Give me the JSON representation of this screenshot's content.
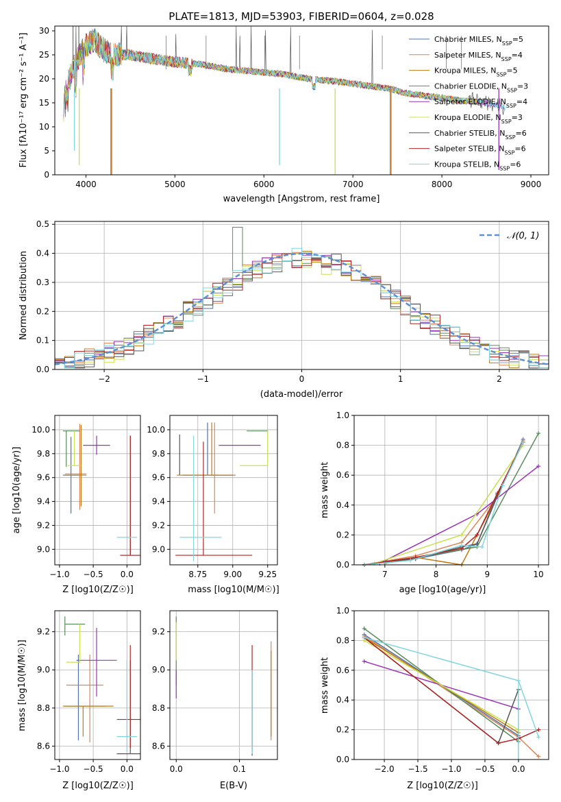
{
  "title": "PLATE=1813, MJD=53903, FIBERID=0604, z=0.028",
  "models": [
    {
      "name": "Chabrier MILES",
      "nssp": "5",
      "color": "#4c72b0"
    },
    {
      "name": "Salpeter MILES",
      "nssp": "4",
      "color": "#dd8452"
    },
    {
      "name": "Kroupa MILES",
      "nssp": "5",
      "color": "#c07a10"
    },
    {
      "name": "Chabrier ELODIE",
      "nssp": "3",
      "color": "#5a8a5a"
    },
    {
      "name": "Salpeter ELODIE",
      "nssp": "4",
      "color": "#9a32b8"
    },
    {
      "name": "Kroupa ELODIE",
      "nssp": "3",
      "color": "#c8e04a"
    },
    {
      "name": "Chabrier STELIB",
      "nssp": "6",
      "color": "#555555"
    },
    {
      "name": "Salpeter STELIB",
      "nssp": "6",
      "color": "#b22222"
    },
    {
      "name": "Kroupa STELIB",
      "nssp": "6",
      "color": "#7fd6e0"
    }
  ],
  "legend_subscript": "SSP",
  "spectrum": {
    "ylabel": "Flux [fλ10⁻¹⁷ erg cm⁻² s⁻¹ A⁻¹]",
    "xlabel": "wavelength [Angstrom, rest frame]",
    "xticks": [
      "4000",
      "5000",
      "6000",
      "7000",
      "8000",
      "9000"
    ],
    "yticks": [
      "0",
      "5",
      "10",
      "15",
      "20",
      "25",
      "30"
    ]
  },
  "histogram": {
    "ylabel": "Normed distribution",
    "xlabel": "(data-model)/error",
    "xticks": [
      "−2",
      "−1",
      "0",
      "1",
      "2"
    ],
    "yticks": [
      "0.0",
      "0.1",
      "0.2",
      "0.3",
      "0.4",
      "0.5"
    ],
    "legend_label": "𝒩(0, 1)"
  },
  "panels": {
    "age_vs_z": {
      "ylabel": "age  [log10(age/yr)]",
      "xlabel": "Z [log10(Z/Z☉)]",
      "xticks": [
        "−1.0",
        "−0.5",
        "0.0"
      ],
      "yticks": [
        "9.0",
        "9.2",
        "9.4",
        "9.6",
        "9.8",
        "10.0"
      ]
    },
    "age_vs_mass": {
      "xlabel": "mass [log10(M/M☉)]",
      "xticks": [
        "8.75",
        "9.00",
        "9.25"
      ],
      "yticks": [
        "9.0",
        "9.2",
        "9.4",
        "9.6",
        "9.8",
        "10.0"
      ]
    },
    "weight_vs_age": {
      "ylabel": "mass weight",
      "xlabel": "age  [log10(age/yr)]",
      "xticks": [
        "7",
        "8",
        "9",
        "10"
      ],
      "yticks": [
        "0.0",
        "0.2",
        "0.4",
        "0.6",
        "0.8",
        "1.0"
      ]
    },
    "mass_vs_z": {
      "ylabel": "mass [log10(M/M☉)]",
      "xlabel": "Z [log10(Z/Z☉)]",
      "xticks": [
        "−1.0",
        "−0.5",
        "0.0"
      ],
      "yticks": [
        "8.6",
        "8.8",
        "9.0",
        "9.2"
      ]
    },
    "mass_vs_ebv": {
      "xlabel": "E(B-V)",
      "xticks": [
        "0.0",
        "0.1"
      ],
      "yticks": [
        "8.6",
        "8.8",
        "9.0",
        "9.2"
      ]
    },
    "weight_vs_z": {
      "ylabel": "mass weight",
      "xlabel": "Z [log10(Z/Z☉)]",
      "xticks": [
        "−2.0",
        "−1.5",
        "−1.0",
        "−0.5",
        "0.0"
      ],
      "yticks": [
        "0.0",
        "0.2",
        "0.4",
        "0.6",
        "0.8",
        "1.0"
      ]
    }
  },
  "chart_data": [
    {
      "type": "line",
      "title": "PLATE=1813, MJD=53903, FIBERID=0604, z=0.028",
      "xlabel": "wavelength [Angstrom, rest frame]",
      "ylabel": "Flux [fλ10⁻¹⁷ erg cm⁻² s⁻¹ A⁻¹]",
      "xlim": [
        3650,
        9200
      ],
      "ylim": [
        0,
        31
      ],
      "x": [
        3750,
        3900,
        4000,
        4100,
        4200,
        4300,
        4500,
        4800,
        5000,
        5300,
        5600,
        5900,
        6200,
        6500,
        6800,
        7000,
        7200,
        7400,
        7600,
        7800,
        8000,
        8200,
        8500,
        8700
      ],
      "series": [
        {
          "name": "Chabrier MILES",
          "values": [
            17,
            24,
            27,
            28,
            26,
            25,
            25,
            24,
            23.5,
            23,
            22,
            21.5,
            21,
            20,
            19.5,
            19,
            18.5,
            18,
            17,
            16.5,
            16,
            15.5,
            15,
            14
          ]
        }
      ]
    },
    {
      "type": "line",
      "xlabel": "(data-model)/error",
      "ylabel": "Normed distribution",
      "xlim": [
        -2.5,
        2.5
      ],
      "ylim": [
        0,
        0.51
      ],
      "series": [
        {
          "name": "𝒩(0, 1)",
          "x": [
            -2.5,
            2.5
          ],
          "values": [
            0.0175,
            0.0175
          ]
        }
      ]
    },
    {
      "type": "line",
      "xlabel": "age  [log10(age/yr)]",
      "ylabel": "mass weight",
      "xlim": [
        6.4,
        10.2
      ],
      "ylim": [
        0,
        1
      ],
      "series": [
        {
          "name": "Chabrier MILES",
          "x": [
            6.6,
            7.6,
            8.5,
            8.8,
            9.2,
            9.7
          ],
          "values": [
            0.0,
            0.04,
            0.1,
            0.14,
            0.46,
            0.84
          ]
        },
        {
          "name": "Salpeter MILES",
          "x": [
            6.6,
            7.6,
            8.5,
            9.2,
            9.7
          ],
          "values": [
            0.0,
            0.06,
            0.15,
            0.46,
            0.83
          ]
        },
        {
          "name": "Kroupa MILES",
          "x": [
            6.6,
            7.6,
            8.5,
            8.8,
            9.2,
            9.7
          ],
          "values": [
            0.0,
            0.05,
            0.0,
            0.2,
            0.46,
            0.82
          ]
        },
        {
          "name": "Chabrier ELODIE",
          "x": [
            7.0,
            8.8,
            10.0
          ],
          "values": [
            0.01,
            0.12,
            0.88
          ]
        },
        {
          "name": "Salpeter ELODIE",
          "x": [
            6.9,
            8.8,
            10.0
          ],
          "values": [
            0.01,
            0.34,
            0.66
          ]
        },
        {
          "name": "Kroupa ELODIE",
          "x": [
            6.8,
            8.5,
            9.7
          ],
          "values": [
            0.01,
            0.2,
            0.8
          ]
        },
        {
          "name": "Chabrier STELIB",
          "x": [
            6.6,
            7.6,
            8.5,
            8.8,
            9.2,
            9.7
          ],
          "values": [
            0.0,
            0.04,
            0.12,
            0.14,
            0.47,
            0.82
          ]
        },
        {
          "name": "Salpeter STELIB",
          "x": [
            6.6,
            7.6,
            8.5,
            8.8,
            9.2,
            9.7
          ],
          "values": [
            0.0,
            0.05,
            0.11,
            0.2,
            0.48,
            0.82
          ]
        },
        {
          "name": "Kroupa STELIB",
          "x": [
            6.6,
            7.5,
            8.5,
            8.9,
            9.3,
            9.7
          ],
          "values": [
            0.0,
            0.03,
            0.13,
            0.12,
            0.53,
            0.82
          ]
        }
      ]
    },
    {
      "type": "line",
      "xlabel": "Z [log10(Z/Z☉)]",
      "ylabel": "mass weight",
      "xlim": [
        -2.45,
        0.45
      ],
      "ylim": [
        0,
        1
      ],
      "series": [
        {
          "name": "Chabrier MILES",
          "x": [
            -2.3,
            0.0
          ],
          "values": [
            0.84,
            0.16
          ]
        },
        {
          "name": "Salpeter MILES",
          "x": [
            -2.3,
            0.0,
            0.3
          ],
          "values": [
            0.83,
            0.15,
            0.02
          ]
        },
        {
          "name": "Kroupa MILES",
          "x": [
            -2.3,
            0.0
          ],
          "values": [
            0.82,
            0.18
          ]
        },
        {
          "name": "Chabrier ELODIE",
          "x": [
            -2.3,
            0.0
          ],
          "values": [
            0.88,
            0.12
          ]
        },
        {
          "name": "Salpeter ELODIE",
          "x": [
            -2.3,
            0.0
          ],
          "values": [
            0.66,
            0.34
          ]
        },
        {
          "name": "Kroupa ELODIE",
          "x": [
            -2.3,
            0.0
          ],
          "values": [
            0.8,
            0.2
          ]
        },
        {
          "name": "Chabrier STELIB",
          "x": [
            -2.3,
            -0.3,
            0.0
          ],
          "values": [
            0.82,
            0.11,
            0.47
          ]
        },
        {
          "name": "Salpeter STELIB",
          "x": [
            -2.3,
            -0.3,
            0.0,
            0.3
          ],
          "values": [
            0.82,
            0.11,
            0.14,
            0.2
          ]
        },
        {
          "name": "Kroupa STELIB",
          "x": [
            -2.3,
            0.0,
            0.3
          ],
          "values": [
            0.82,
            0.53,
            0.15
          ]
        }
      ]
    }
  ]
}
